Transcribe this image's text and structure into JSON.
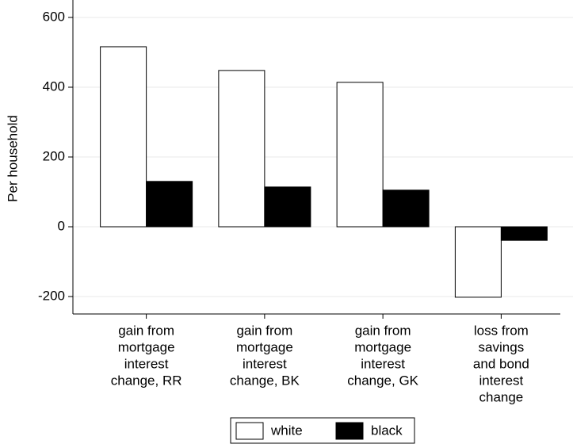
{
  "chart_data": {
    "type": "bar",
    "y_label": "Per household",
    "categories": [
      [
        "gain from",
        "mortgage",
        "interest",
        "change, RR"
      ],
      [
        "gain from",
        "mortgage",
        "interest",
        "change, BK"
      ],
      [
        "gain from",
        "mortgage",
        "interest",
        "change, GK"
      ],
      [
        "loss from",
        "savings",
        "and bond",
        "interest",
        "change"
      ]
    ],
    "series": [
      {
        "name": "white",
        "color": "#ffffff",
        "values": [
          516,
          448,
          414,
          -202
        ]
      },
      {
        "name": "black",
        "color": "#000000",
        "values": [
          130,
          114,
          105,
          -39
        ]
      }
    ],
    "ylim": [
      -250,
      650
    ],
    "yticks": [
      -200,
      0,
      200,
      400,
      600
    ],
    "grid": true
  }
}
